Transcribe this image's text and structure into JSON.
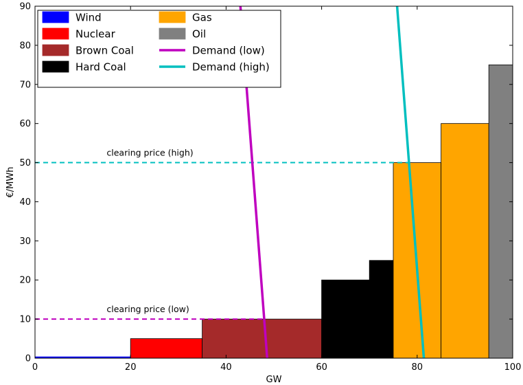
{
  "chart_data": {
    "type": "bar",
    "title": "",
    "xlabel": "GW",
    "ylabel": "€/MWh",
    "xlim": [
      0,
      100
    ],
    "ylim": [
      0,
      90
    ],
    "x_ticks": [
      0,
      20,
      40,
      60,
      80,
      100
    ],
    "y_ticks": [
      0,
      10,
      20,
      30,
      40,
      50,
      60,
      70,
      80,
      90
    ],
    "grid": false,
    "legend_position": "top-left",
    "legend": [
      {
        "label": "Wind",
        "kind": "patch",
        "color": "#0000ff"
      },
      {
        "label": "Nuclear",
        "kind": "patch",
        "color": "#ff0000"
      },
      {
        "label": "Brown Coal",
        "kind": "patch",
        "color": "#a52a2a"
      },
      {
        "label": "Hard Coal",
        "kind": "patch",
        "color": "#000000"
      },
      {
        "label": "Gas",
        "kind": "patch",
        "color": "#ffa500"
      },
      {
        "label": "Oil",
        "kind": "patch",
        "color": "#808080"
      },
      {
        "label": "Demand (low)",
        "kind": "line",
        "color": "#bf00bf"
      },
      {
        "label": "Demand (high)",
        "kind": "line",
        "color": "#00bfbf"
      }
    ],
    "supply_blocks": [
      {
        "technology": "Wind",
        "x_start": 0,
        "x_end": 20,
        "price": 0,
        "color": "#0000ff"
      },
      {
        "technology": "Nuclear",
        "x_start": 20,
        "x_end": 35,
        "price": 5,
        "color": "#ff0000"
      },
      {
        "technology": "Brown Coal",
        "x_start": 35,
        "x_end": 60,
        "price": 10,
        "color": "#a52a2a"
      },
      {
        "technology": "Hard Coal",
        "x_start": 60,
        "x_end": 70,
        "price": 20,
        "color": "#000000"
      },
      {
        "technology": "Hard Coal",
        "x_start": 70,
        "x_end": 75,
        "price": 25,
        "color": "#000000"
      },
      {
        "technology": "Gas",
        "x_start": 75,
        "x_end": 85,
        "price": 50,
        "color": "#ffa500"
      },
      {
        "technology": "Gas",
        "x_start": 85,
        "x_end": 95,
        "price": 60,
        "color": "#ffa500"
      },
      {
        "technology": "Oil",
        "x_start": 95,
        "x_end": 100,
        "price": 75,
        "color": "#808080"
      }
    ],
    "demand_lines": [
      {
        "name": "Demand (low)",
        "color": "#bf00bf",
        "points": [
          [
            43.0,
            90
          ],
          [
            48.6,
            0
          ]
        ]
      },
      {
        "name": "Demand (high)",
        "color": "#00bfbf",
        "points": [
          [
            75.8,
            90
          ],
          [
            81.4,
            0
          ]
        ]
      }
    ],
    "clearing_prices": [
      {
        "label": "clearing price (low)",
        "price": 10,
        "x_start": 0,
        "x_end": 47.9,
        "color": "#bf00bf",
        "label_x": 15
      },
      {
        "label": "clearing price (high)",
        "price": 50,
        "x_start": 0,
        "x_end": 78.3,
        "color": "#00bfbf",
        "label_x": 15
      }
    ]
  }
}
